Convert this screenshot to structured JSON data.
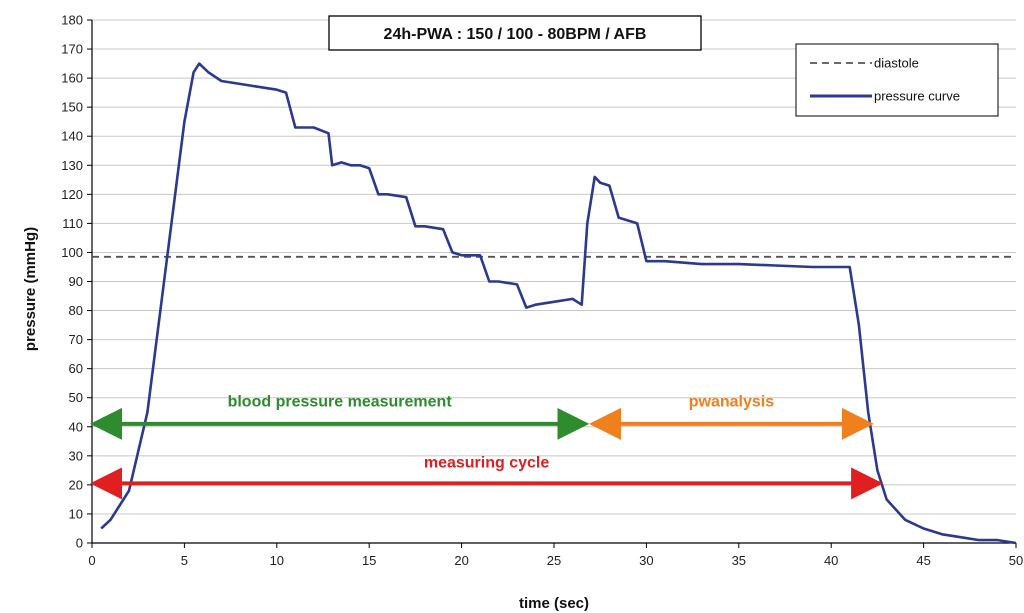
{
  "chart_data": {
    "type": "line",
    "title": "24h-PWA : 150 / 100 - 80BPM  /  AFB",
    "xlabel": "time (sec)",
    "ylabel": "pressure (mmHg)",
    "xlim": [
      0,
      50
    ],
    "ylim": [
      0,
      180
    ],
    "xticks": [
      0,
      5,
      10,
      15,
      20,
      25,
      30,
      35,
      40,
      45,
      50
    ],
    "yticks": [
      0,
      10,
      20,
      30,
      40,
      50,
      60,
      70,
      80,
      90,
      100,
      110,
      120,
      130,
      140,
      150,
      160,
      170,
      180
    ],
    "grid": "horizontal",
    "legend_position": "top-right",
    "series": [
      {
        "name": "diastole",
        "style": "dashed",
        "color": "#555555",
        "x": [
          0,
          50
        ],
        "y": [
          98.5,
          98.5
        ]
      },
      {
        "name": "pressure curve",
        "style": "solid",
        "color": "#2b3990",
        "x": [
          0.5,
          1,
          2,
          3,
          4,
          5,
          5.5,
          5.8,
          6.3,
          7,
          8,
          9,
          10,
          10.5,
          11,
          12,
          12.8,
          13,
          13.5,
          14,
          14.5,
          15,
          15.5,
          16,
          17,
          17.5,
          18,
          19,
          19.5,
          20,
          21,
          21.5,
          22,
          23,
          23.5,
          24,
          25,
          26,
          26.5,
          26.8,
          27.2,
          27.5,
          28,
          28.5,
          29,
          29.5,
          30,
          31,
          33,
          35,
          37,
          39,
          41,
          41.5,
          42,
          42.5,
          43,
          44,
          45,
          46,
          47,
          48,
          49,
          50
        ],
        "y": [
          5,
          8,
          18,
          45,
          95,
          145,
          162,
          165,
          162,
          159,
          158,
          157,
          156,
          155,
          143,
          143,
          141,
          130,
          131,
          130,
          130,
          129,
          120,
          120,
          119,
          109,
          109,
          108,
          100,
          99,
          99,
          90,
          90,
          89,
          81,
          82,
          83,
          84,
          82,
          110,
          126,
          124,
          123,
          112,
          111,
          110,
          97,
          97,
          96,
          96,
          95.5,
          95,
          95,
          75,
          45,
          25,
          15,
          8,
          5,
          3,
          2,
          1,
          1,
          0
        ]
      }
    ],
    "annotations": [
      {
        "text": "blood pressure measurement",
        "color": "#2e8b2e",
        "x_start": 0,
        "x_end": 26.8,
        "y_arrow": 41,
        "y_text": 47
      },
      {
        "text": "pwanalysis",
        "color": "#f07f1e",
        "x_start": 27,
        "x_end": 42.2,
        "y_arrow": 41,
        "y_text": 47
      },
      {
        "text": "measuring cycle",
        "color": "#e02020",
        "x_start": 0,
        "x_end": 42.7,
        "y_arrow": 20.5,
        "y_text": 26
      }
    ]
  }
}
